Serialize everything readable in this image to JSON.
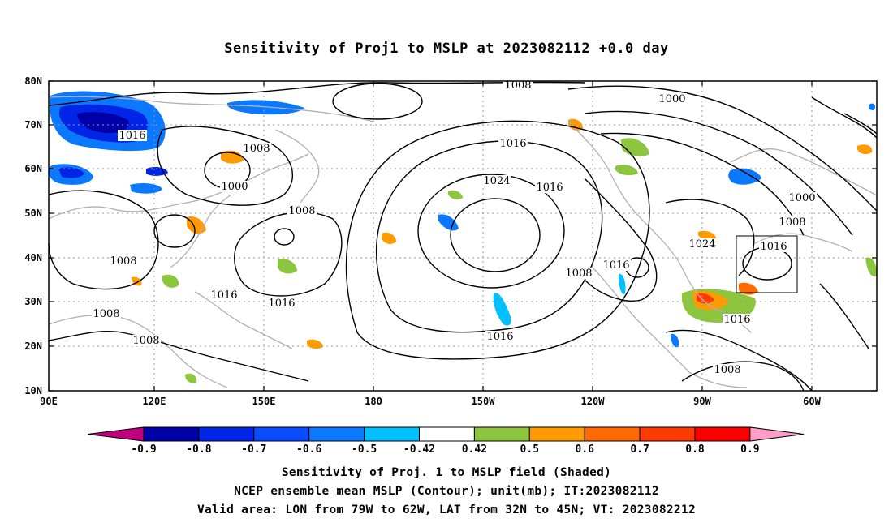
{
  "title": "Sensitivity of Proj1 to MSLP at 2023082112 +0.0 day",
  "lat_ticks": [
    "80N",
    "70N",
    "60N",
    "50N",
    "40N",
    "30N",
    "20N",
    "10N"
  ],
  "lon_ticks": [
    "90E",
    "120E",
    "150E",
    "180",
    "150W",
    "120W",
    "90W",
    "60W"
  ],
  "colorbar": {
    "labels": [
      "-0.9",
      "-0.8",
      "-0.7",
      "-0.6",
      "-0.5",
      "-0.42",
      "0.42",
      "0.5",
      "0.6",
      "0.7",
      "0.8",
      "0.9"
    ],
    "colors": [
      "#c0007f",
      "#0000a8",
      "#0025e6",
      "#0a4cff",
      "#0a78ff",
      "#00c0ff",
      "#ffffff",
      "#8cc63f",
      "#ff9a00",
      "#ff6a00",
      "#ff3a00",
      "#ff0000",
      "#ff9ec8"
    ]
  },
  "contour_labels": [
    "1008",
    "1016",
    "1008",
    "1000",
    "1008",
    "1008",
    "1008",
    "1008",
    "1016",
    "1016",
    "1016",
    "1024",
    "1016",
    "1008",
    "1016",
    "1016",
    "1000",
    "1000",
    "1008",
    "1024",
    "1016",
    "1016",
    "1008"
  ],
  "captions": [
    "Sensitivity of Proj. 1 to MSLP field (Shaded)",
    "NCEP ensemble mean MSLP (Contour); unit(mb); IT:2023082112",
    "Valid area: LON from 79W to 62W, LAT from 32N to 45N; VT: 2023082212"
  ]
}
